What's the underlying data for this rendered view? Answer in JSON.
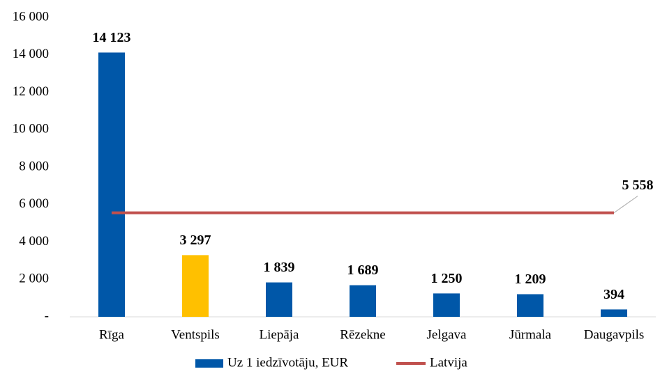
{
  "chart_data": {
    "type": "bar",
    "categories": [
      "Rīga",
      "Ventspils",
      "Liepāja",
      "Rēzekne",
      "Jelgava",
      "Jūrmala",
      "Daugavpils"
    ],
    "series": [
      {
        "name": "Uz 1 iedzīvotāju, EUR",
        "color": "#0057a8",
        "colors": [
          "#0057a8",
          "#ffc000",
          "#0057a8",
          "#0057a8",
          "#0057a8",
          "#0057a8",
          "#0057a8"
        ],
        "values": [
          14123,
          3297,
          1839,
          1689,
          1250,
          1209,
          394
        ],
        "value_labels": [
          "14 123",
          "3 297",
          "1 839",
          "1 689",
          "1 250",
          "1 209",
          "394"
        ]
      },
      {
        "name": "Latvija",
        "type": "line",
        "color": "#c0504d",
        "value": 5558,
        "value_label": "5 558"
      }
    ],
    "ylim": [
      0,
      16000
    ],
    "yticks": [
      {
        "value": 0,
        "label": "-"
      },
      {
        "value": 2000,
        "label": "2 000"
      },
      {
        "value": 4000,
        "label": "4 000"
      },
      {
        "value": 6000,
        "label": "6 000"
      },
      {
        "value": 8000,
        "label": "8 000"
      },
      {
        "value": 10000,
        "label": "10 000"
      },
      {
        "value": 12000,
        "label": "12 000"
      },
      {
        "value": 14000,
        "label": "14 000"
      },
      {
        "value": 16000,
        "label": "16 000"
      }
    ],
    "grid": false,
    "legend": "bottom"
  }
}
